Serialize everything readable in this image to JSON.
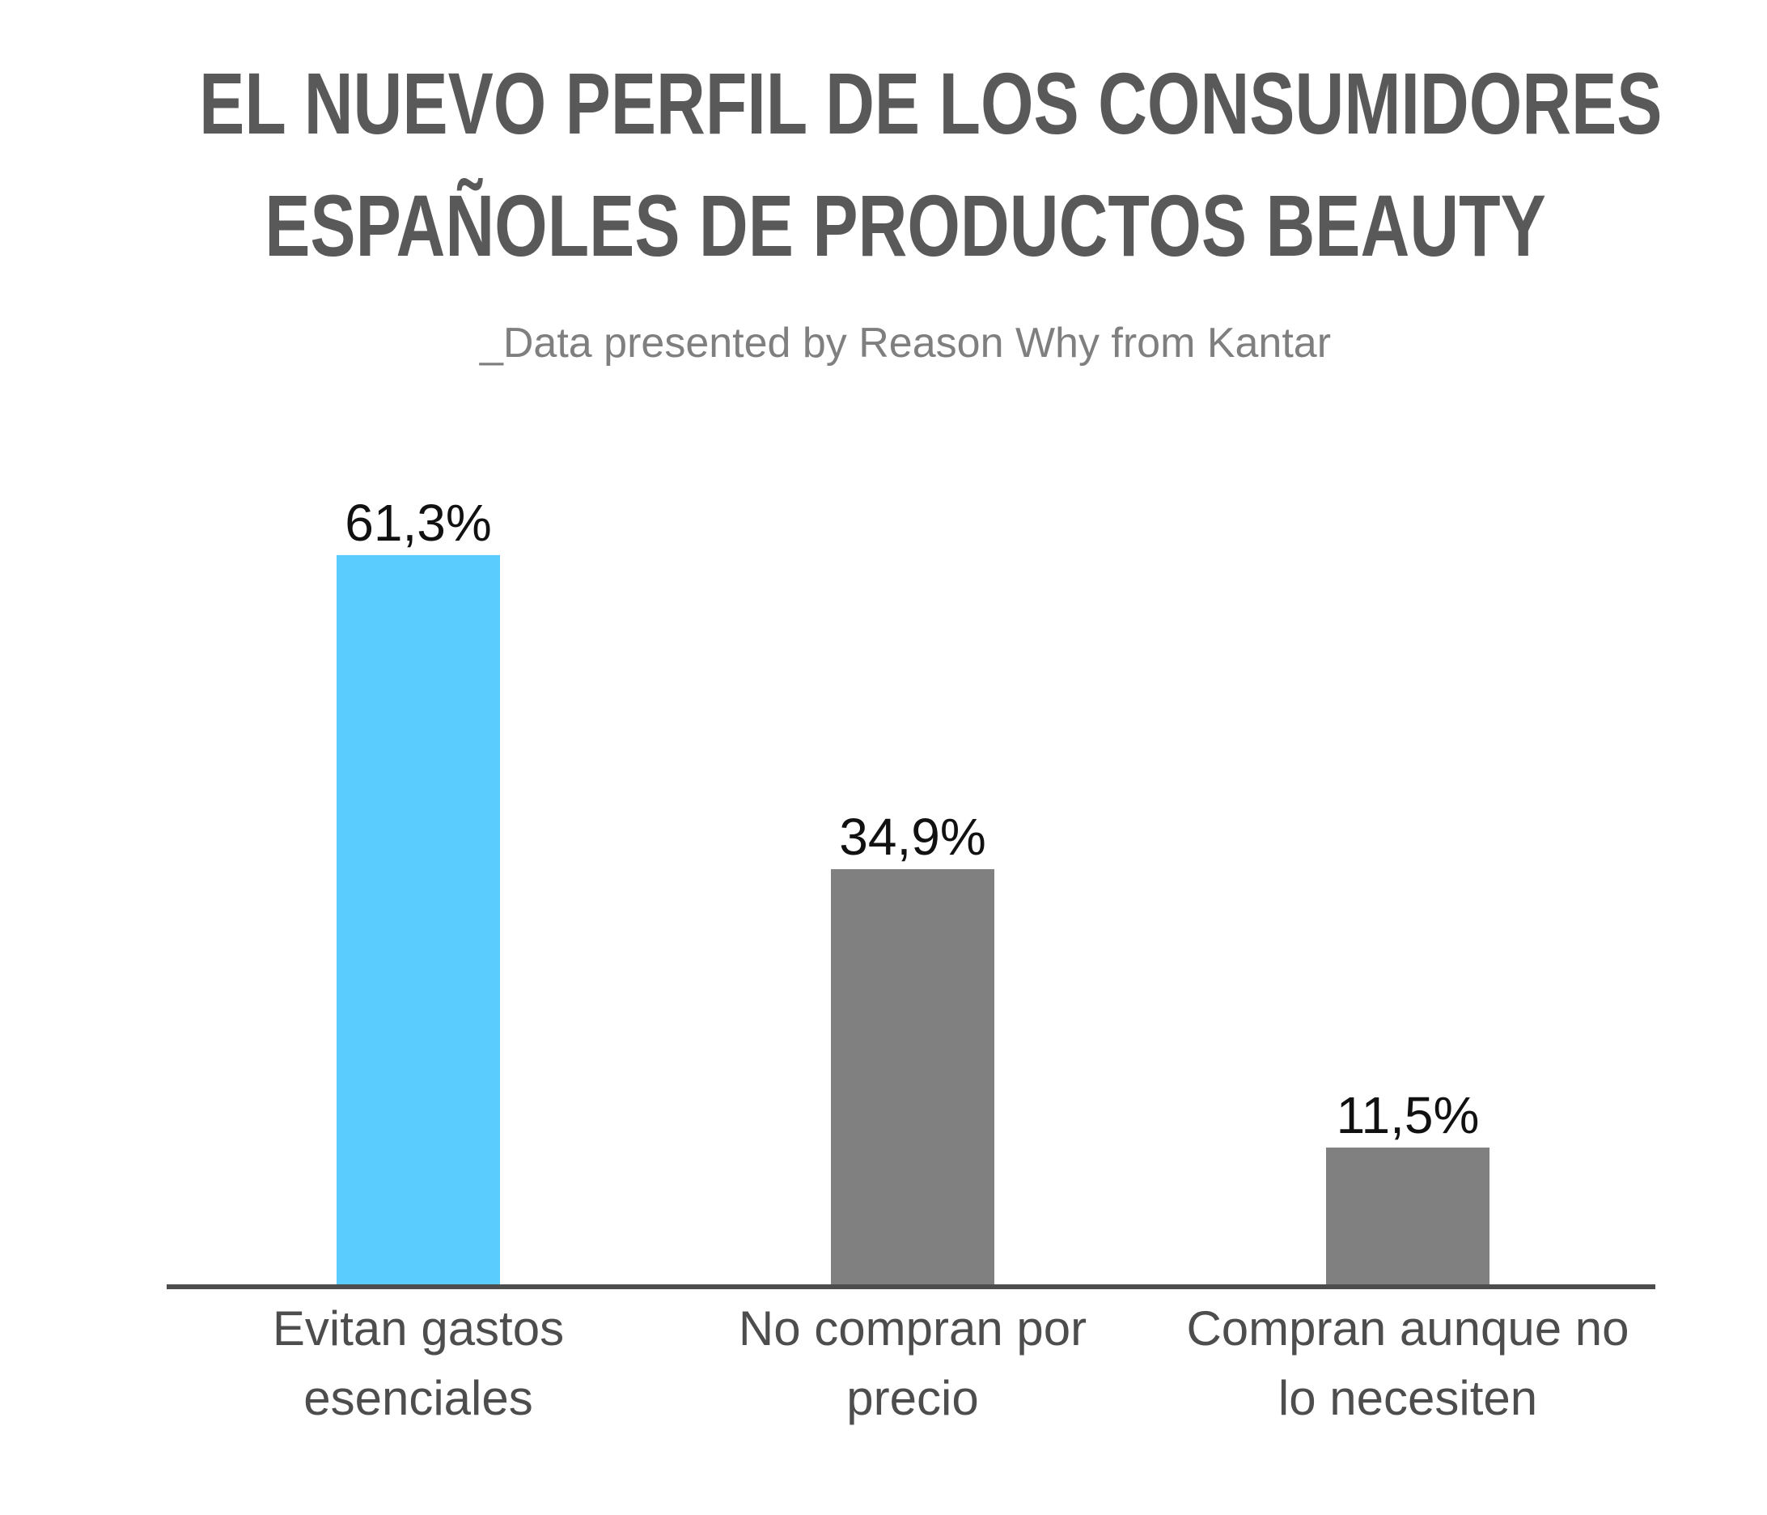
{
  "header": {
    "title_line_1": "EL NUEVO PERFIL DE LOS CONSUMIDORES",
    "title_line_2": "ESPAÑOLES DE PRODUCTOS BEAUTY",
    "subtitle": "_Data presented by Reason Why from Kantar"
  },
  "colors": {
    "highlight": "#5acdfe",
    "default_bar": "#808080",
    "axis": "#4d4d4d",
    "title": "#595959",
    "subtitle": "#7f7f7f"
  },
  "chart_data": {
    "type": "bar",
    "title": "EL NUEVO PERFIL DE LOS CONSUMIDORES ESPAÑOLES DE PRODUCTOS BEAUTY",
    "subtitle": "_Data presented by Reason Why from Kantar",
    "categories": [
      [
        "Evitan gastos",
        "esenciales"
      ],
      [
        "No compran por",
        "precio"
      ],
      [
        "Compran aunque no",
        "lo necesiten"
      ]
    ],
    "values": [
      61.3,
      34.9,
      11.5
    ],
    "value_labels": [
      "61,3%",
      "34,9%",
      "11,5%"
    ],
    "highlight_index": 0,
    "xlabel": "",
    "ylabel": "",
    "ylim": [
      0,
      100
    ],
    "grid": false,
    "legend": "none",
    "y_axis_visible": false
  }
}
